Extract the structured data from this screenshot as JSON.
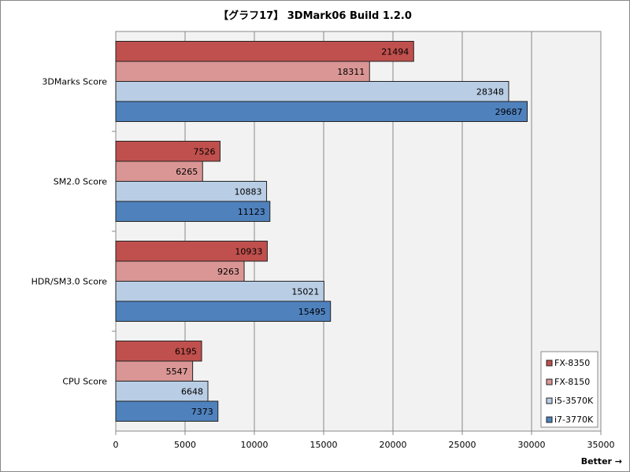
{
  "chart_data": {
    "type": "bar",
    "orientation": "horizontal",
    "title": "【グラフ17】 3DMark06 Build 1.2.0",
    "categories": [
      "3DMarks Score",
      "SM2.0 Score",
      "HDR/SM3.0 Score",
      "CPU Score"
    ],
    "series": [
      {
        "name": "FX-8350",
        "color": "#c0504d",
        "values": [
          21494,
          7526,
          10933,
          6195
        ]
      },
      {
        "name": "FX-8150",
        "color": "#d99694",
        "values": [
          18311,
          6265,
          9263,
          5547
        ]
      },
      {
        "name": "i5-3570K",
        "color": "#b9cde5",
        "values": [
          28348,
          10883,
          15021,
          6648
        ]
      },
      {
        "name": "i7-3770K",
        "color": "#4f81bd",
        "values": [
          29687,
          11123,
          15495,
          7373
        ]
      }
    ],
    "xlim": [
      0,
      35000
    ],
    "xticks": [
      "0",
      "5000",
      "10000",
      "15000",
      "20000",
      "25000",
      "30000",
      "35000"
    ],
    "grid": true,
    "legend": "bottom-right",
    "annotation": "Better →",
    "plot_background": "#f2f2f2"
  }
}
